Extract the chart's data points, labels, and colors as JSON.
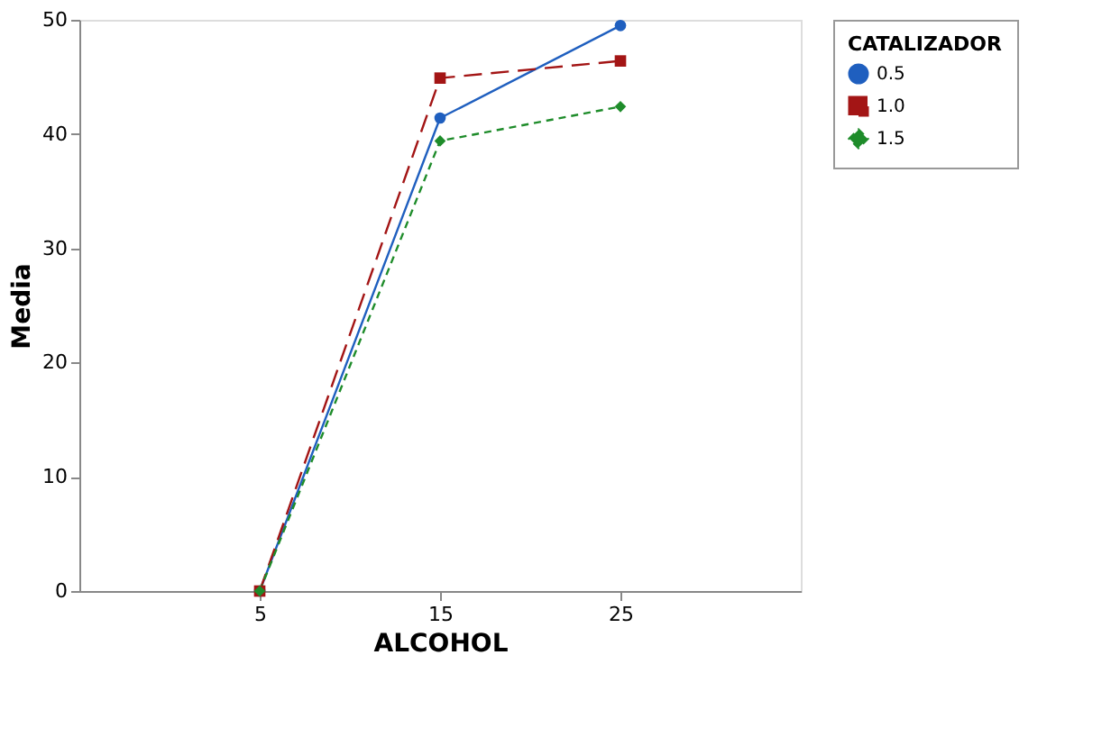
{
  "chart_data": {
    "type": "line",
    "xlabel": "ALCOHOL",
    "ylabel": "Media",
    "legend_title": "CATALIZADOR",
    "categories": [
      "5",
      "15",
      "25"
    ],
    "ylim": [
      0,
      50
    ],
    "yticks": [
      0,
      10,
      20,
      30,
      40,
      50
    ],
    "grid": false,
    "legend": "top right",
    "series": [
      {
        "name": "0.5",
        "color": "#1f5fbf",
        "values": [
          0,
          41.4,
          49.5
        ],
        "marker": "circle",
        "line_style": "solid"
      },
      {
        "name": "1.0",
        "color": "#a31515",
        "values": [
          0,
          44.9,
          46.4
        ],
        "marker": "square",
        "line_style": "dashed"
      },
      {
        "name": "1.5",
        "color": "#1e8c2a",
        "values": [
          0,
          39.4,
          42.4
        ],
        "marker": "diamond",
        "line_style": "dotted"
      }
    ]
  }
}
